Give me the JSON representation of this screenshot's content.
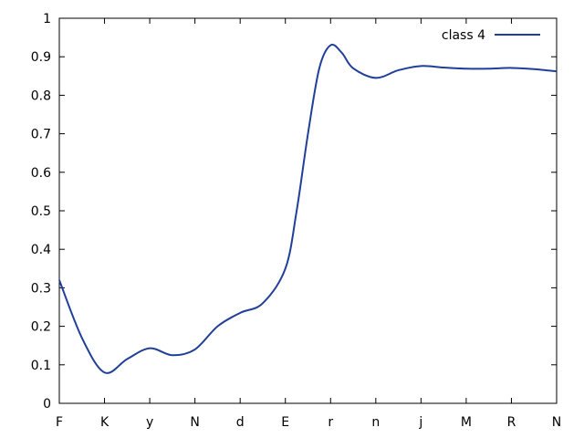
{
  "chart_data": {
    "type": "line",
    "title": "",
    "xlabel": "",
    "ylabel": "",
    "categories": [
      "F",
      "K",
      "y",
      "N",
      "d",
      "E",
      "r",
      "n",
      "j",
      "M",
      "R",
      "N"
    ],
    "ylim": [
      0,
      1
    ],
    "yticks": [
      "0",
      "0.1",
      "0.2",
      "0.3",
      "0.4",
      "0.5",
      "0.6",
      "0.7",
      "0.8",
      "0.9",
      "1"
    ],
    "grid": false,
    "legend_position": "top-right",
    "series": [
      {
        "name": "class 4",
        "color": "#1f3f99",
        "x": [
          0,
          0.5,
          1,
          1.5,
          2,
          2.5,
          3,
          3.5,
          4,
          4.5,
          5,
          5.25,
          5.5,
          5.75,
          6,
          6.25,
          6.5,
          7,
          7.5,
          8,
          8.5,
          9,
          9.5,
          10,
          10.5,
          11
        ],
        "values": [
          0.32,
          0.17,
          0.08,
          0.115,
          0.143,
          0.125,
          0.14,
          0.2,
          0.235,
          0.26,
          0.35,
          0.5,
          0.7,
          0.87,
          0.93,
          0.91,
          0.87,
          0.845,
          0.865,
          0.876,
          0.872,
          0.869,
          0.869,
          0.871,
          0.868,
          0.862
        ]
      }
    ]
  }
}
